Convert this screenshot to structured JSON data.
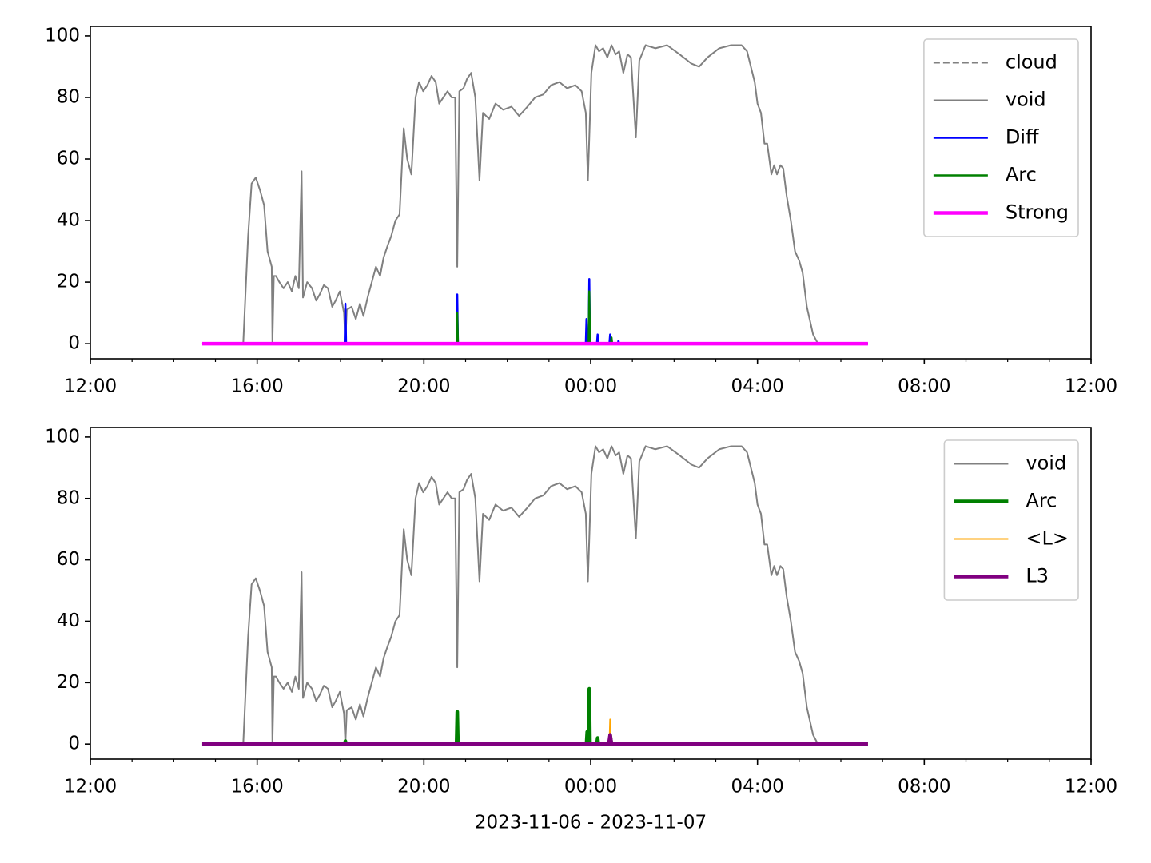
{
  "chart_data": [
    {
      "type": "line",
      "legend": "upper right",
      "xlim": [
        "12:00",
        "12:00"
      ],
      "xticks": [
        "12:00",
        "16:00",
        "20:00",
        "00:00",
        "04:00",
        "08:00",
        "12:00"
      ],
      "ylim": [
        -4.9,
        103.1
      ],
      "yticks": [
        0,
        20,
        40,
        60,
        80,
        100
      ],
      "series": [
        {
          "name": "cloud",
          "color": "#808080",
          "linestyle": "dashed",
          "linewidth": 2,
          "x": [
            "14:41",
            "06:39"
          ],
          "values": [
            0,
            0
          ]
        },
        {
          "name": "void",
          "color": "#808080",
          "linestyle": "solid",
          "linewidth": 2,
          "x": [
            "14:41",
            "15:40",
            "15:47",
            "15:52",
            "15:58",
            "16:04",
            "16:10",
            "16:15",
            "16:21",
            "16:22",
            "16:24",
            "16:27",
            "16:32",
            "16:38",
            "16:44",
            "16:50",
            "16:55",
            "17:00",
            "17:04",
            "17:06",
            "17:12",
            "17:19",
            "17:25",
            "17:30",
            "17:36",
            "17:42",
            "17:48",
            "17:53",
            "17:59",
            "18:05",
            "18:07",
            "18:09",
            "18:16",
            "18:22",
            "18:28",
            "18:33",
            "18:39",
            "18:45",
            "18:51",
            "18:57",
            "19:02",
            "19:08",
            "19:13",
            "19:19",
            "19:25",
            "19:31",
            "19:36",
            "19:42",
            "19:48",
            "19:53",
            "19:59",
            "20:05",
            "20:11",
            "20:17",
            "20:22",
            "20:28",
            "20:34",
            "20:40",
            "20:45",
            "20:48",
            "20:51",
            "20:57",
            "21:02",
            "21:08",
            "21:14",
            "21:20",
            "21:25",
            "21:34",
            "21:43",
            "21:54",
            "22:06",
            "22:17",
            "22:29",
            "22:40",
            "22:52",
            "23:03",
            "23:15",
            "23:26",
            "23:38",
            "23:47",
            "23:53",
            "23:56",
            "00:01",
            "00:07",
            "00:12",
            "00:18",
            "00:24",
            "00:30",
            "00:36",
            "00:41",
            "00:47",
            "00:53",
            "00:58",
            "01:05",
            "01:10",
            "01:19",
            "01:33",
            "01:50",
            "02:08",
            "02:25",
            "02:36",
            "02:48",
            "03:05",
            "03:22",
            "03:37",
            "03:45",
            "03:56",
            "04:00",
            "04:05",
            "04:10",
            "04:14",
            "04:20",
            "04:24",
            "04:28",
            "04:33",
            "04:37",
            "04:42",
            "04:48",
            "04:54",
            "05:00",
            "05:05",
            "05:11",
            "05:20",
            "05:27",
            "06:39"
          ],
          "values": [
            0,
            0,
            35,
            52,
            54,
            50,
            45,
            30,
            25,
            0,
            22,
            22,
            20,
            18,
            20,
            17,
            22,
            18,
            56,
            15,
            20,
            18,
            14,
            16,
            19,
            18,
            12,
            14,
            17,
            10,
            0,
            11,
            12,
            8,
            13,
            9,
            15,
            20,
            25,
            22,
            28,
            32,
            35,
            40,
            42,
            70,
            60,
            55,
            80,
            85,
            82,
            84,
            87,
            85,
            78,
            80,
            82,
            80,
            80,
            25,
            82,
            83,
            86,
            88,
            80,
            53,
            75,
            73,
            78,
            76,
            77,
            74,
            77,
            80,
            81,
            84,
            85,
            83,
            84,
            82,
            75,
            53,
            88,
            97,
            95,
            96,
            93,
            97,
            94,
            95,
            88,
            94,
            93,
            67,
            92,
            97,
            96,
            97,
            94,
            91,
            90,
            93,
            96,
            97,
            97,
            95,
            85,
            78,
            75,
            65,
            65,
            55,
            58,
            55,
            58,
            57,
            48,
            40,
            30,
            27,
            23,
            12,
            3,
            0,
            0
          ]
        },
        {
          "name": "Diff",
          "color": "#0000ff",
          "linestyle": "solid",
          "linewidth": 2.5,
          "x": [
            "14:41",
            "18:06",
            "18:07",
            "18:08",
            "20:47",
            "20:48",
            "20:49",
            "23:53",
            "23:54",
            "23:55",
            "23:57",
            "23:58",
            "23:59",
            "00:09",
            "00:10",
            "00:11",
            "00:27",
            "00:28",
            "00:29",
            "00:39",
            "00:40",
            "00:41",
            "06:39"
          ],
          "values": [
            0,
            0,
            13,
            0,
            0,
            16,
            0,
            0,
            8,
            0,
            0,
            21,
            0,
            0,
            3,
            0,
            0,
            3,
            0,
            0,
            1,
            0,
            0
          ]
        },
        {
          "name": "Arc",
          "color": "#008000",
          "linestyle": "solid",
          "linewidth": 2.5,
          "x": [
            "14:41",
            "20:47",
            "20:48",
            "20:49",
            "23:57",
            "23:58",
            "23:59",
            "00:29",
            "00:30",
            "00:31",
            "06:39"
          ],
          "values": [
            0,
            0,
            10,
            0,
            0,
            17,
            0,
            0,
            2,
            0,
            0
          ]
        },
        {
          "name": "Strong",
          "color": "#ff00ff",
          "linestyle": "solid",
          "linewidth": 4.5,
          "x": [
            "14:41",
            "06:39"
          ],
          "values": [
            0,
            0
          ]
        }
      ]
    },
    {
      "type": "line",
      "legend": "upper right",
      "xlabel": "2023-11-06 - 2023-11-07",
      "xlim": [
        "12:00",
        "12:00"
      ],
      "xticks": [
        "12:00",
        "16:00",
        "20:00",
        "00:00",
        "04:00",
        "08:00",
        "12:00"
      ],
      "ylim": [
        -4.9,
        103.1
      ],
      "yticks": [
        0,
        20,
        40,
        60,
        80,
        100
      ],
      "series": [
        {
          "name": "void",
          "color": "#808080",
          "linestyle": "solid",
          "linewidth": 2,
          "x": [
            "14:41",
            "15:40",
            "15:47",
            "15:52",
            "15:58",
            "16:04",
            "16:10",
            "16:15",
            "16:21",
            "16:22",
            "16:24",
            "16:27",
            "16:32",
            "16:38",
            "16:44",
            "16:50",
            "16:55",
            "17:00",
            "17:04",
            "17:06",
            "17:12",
            "17:19",
            "17:25",
            "17:30",
            "17:36",
            "17:42",
            "17:48",
            "17:53",
            "17:59",
            "18:05",
            "18:07",
            "18:09",
            "18:16",
            "18:22",
            "18:28",
            "18:33",
            "18:39",
            "18:45",
            "18:51",
            "18:57",
            "19:02",
            "19:08",
            "19:13",
            "19:19",
            "19:25",
            "19:31",
            "19:36",
            "19:42",
            "19:48",
            "19:53",
            "19:59",
            "20:05",
            "20:11",
            "20:17",
            "20:22",
            "20:28",
            "20:34",
            "20:40",
            "20:45",
            "20:48",
            "20:51",
            "20:57",
            "21:02",
            "21:08",
            "21:14",
            "21:20",
            "21:25",
            "21:34",
            "21:43",
            "21:54",
            "22:06",
            "22:17",
            "22:29",
            "22:40",
            "22:52",
            "23:03",
            "23:15",
            "23:26",
            "23:38",
            "23:47",
            "23:53",
            "23:56",
            "00:01",
            "00:07",
            "00:12",
            "00:18",
            "00:24",
            "00:30",
            "00:36",
            "00:41",
            "00:47",
            "00:53",
            "00:58",
            "01:05",
            "01:10",
            "01:19",
            "01:33",
            "01:50",
            "02:08",
            "02:25",
            "02:36",
            "02:48",
            "03:05",
            "03:22",
            "03:37",
            "03:45",
            "03:56",
            "04:00",
            "04:05",
            "04:10",
            "04:14",
            "04:20",
            "04:24",
            "04:28",
            "04:33",
            "04:37",
            "04:42",
            "04:48",
            "04:54",
            "05:00",
            "05:05",
            "05:11",
            "05:20",
            "05:27",
            "06:39"
          ],
          "values": [
            0,
            0,
            35,
            52,
            54,
            50,
            45,
            30,
            25,
            0,
            22,
            22,
            20,
            18,
            20,
            17,
            22,
            18,
            56,
            15,
            20,
            18,
            14,
            16,
            19,
            18,
            12,
            14,
            17,
            10,
            0,
            11,
            12,
            8,
            13,
            9,
            15,
            20,
            25,
            22,
            28,
            32,
            35,
            40,
            42,
            70,
            60,
            55,
            80,
            85,
            82,
            84,
            87,
            85,
            78,
            80,
            82,
            80,
            80,
            25,
            82,
            83,
            86,
            88,
            80,
            53,
            75,
            73,
            78,
            76,
            77,
            74,
            77,
            80,
            81,
            84,
            85,
            83,
            84,
            82,
            75,
            53,
            88,
            97,
            95,
            96,
            93,
            97,
            94,
            95,
            88,
            94,
            93,
            67,
            92,
            97,
            96,
            97,
            94,
            91,
            90,
            93,
            96,
            97,
            97,
            95,
            85,
            78,
            75,
            65,
            65,
            55,
            58,
            55,
            58,
            57,
            48,
            40,
            30,
            27,
            23,
            12,
            3,
            0,
            0
          ]
        },
        {
          "name": "Arc",
          "color": "#008000",
          "linestyle": "solid",
          "linewidth": 4.5,
          "x": [
            "14:41",
            "18:06",
            "18:07",
            "18:08",
            "20:47",
            "20:48",
            "20:49",
            "23:54",
            "23:55",
            "23:56",
            "23:57",
            "23:58",
            "23:59",
            "00:09",
            "00:10",
            "00:11",
            "00:27",
            "00:28",
            "00:30",
            "06:39"
          ],
          "values": [
            0,
            0,
            1,
            0,
            0,
            10.5,
            0,
            0,
            4,
            0,
            0,
            18,
            0,
            0,
            2,
            0,
            0,
            3,
            0,
            0
          ]
        },
        {
          "name": "<L>",
          "color": "#ffa500",
          "linestyle": "solid",
          "linewidth": 2,
          "x": [
            "14:41",
            "00:27",
            "00:28",
            "00:29",
            "06:39"
          ],
          "values": [
            0,
            0,
            8,
            0,
            0
          ]
        },
        {
          "name": "L3",
          "color": "#800080",
          "linestyle": "solid",
          "linewidth": 4.5,
          "x": [
            "14:41",
            "00:26",
            "00:28",
            "00:30",
            "06:39"
          ],
          "values": [
            0,
            0,
            3,
            0,
            0
          ]
        }
      ]
    }
  ]
}
